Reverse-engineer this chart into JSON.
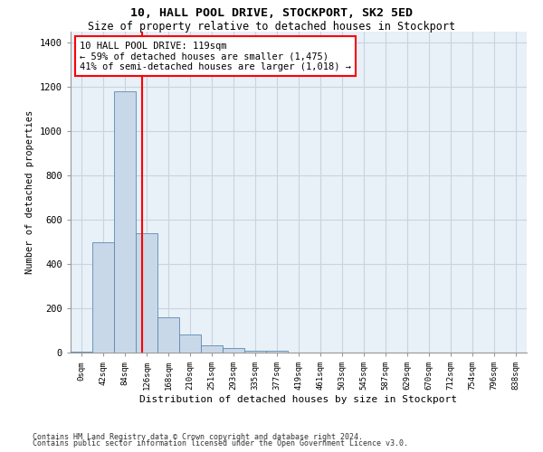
{
  "title1": "10, HALL POOL DRIVE, STOCKPORT, SK2 5ED",
  "title2": "Size of property relative to detached houses in Stockport",
  "xlabel": "Distribution of detached houses by size in Stockport",
  "ylabel": "Number of detached properties",
  "categories": [
    "0sqm",
    "42sqm",
    "84sqm",
    "126sqm",
    "168sqm",
    "210sqm",
    "251sqm",
    "293sqm",
    "335sqm",
    "377sqm",
    "419sqm",
    "461sqm",
    "503sqm",
    "545sqm",
    "587sqm",
    "629sqm",
    "670sqm",
    "712sqm",
    "754sqm",
    "796sqm",
    "838sqm"
  ],
  "values": [
    5,
    500,
    1180,
    540,
    160,
    80,
    32,
    22,
    10,
    8,
    0,
    0,
    0,
    0,
    0,
    0,
    0,
    0,
    0,
    0,
    0
  ],
  "bar_color": "#c8d8e8",
  "bar_edge_color": "#5a8ab0",
  "grid_color": "#c8d4de",
  "bg_color": "#e8f0f8",
  "vline_x": 2.78,
  "annotation_text": "10 HALL POOL DRIVE: 119sqm\n← 59% of detached houses are smaller (1,475)\n41% of semi-detached houses are larger (1,018) →",
  "footer1": "Contains HM Land Registry data © Crown copyright and database right 2024.",
  "footer2": "Contains public sector information licensed under the Open Government Licence v3.0.",
  "ylim": [
    0,
    1450
  ],
  "yticks": [
    0,
    200,
    400,
    600,
    800,
    1000,
    1200,
    1400
  ]
}
